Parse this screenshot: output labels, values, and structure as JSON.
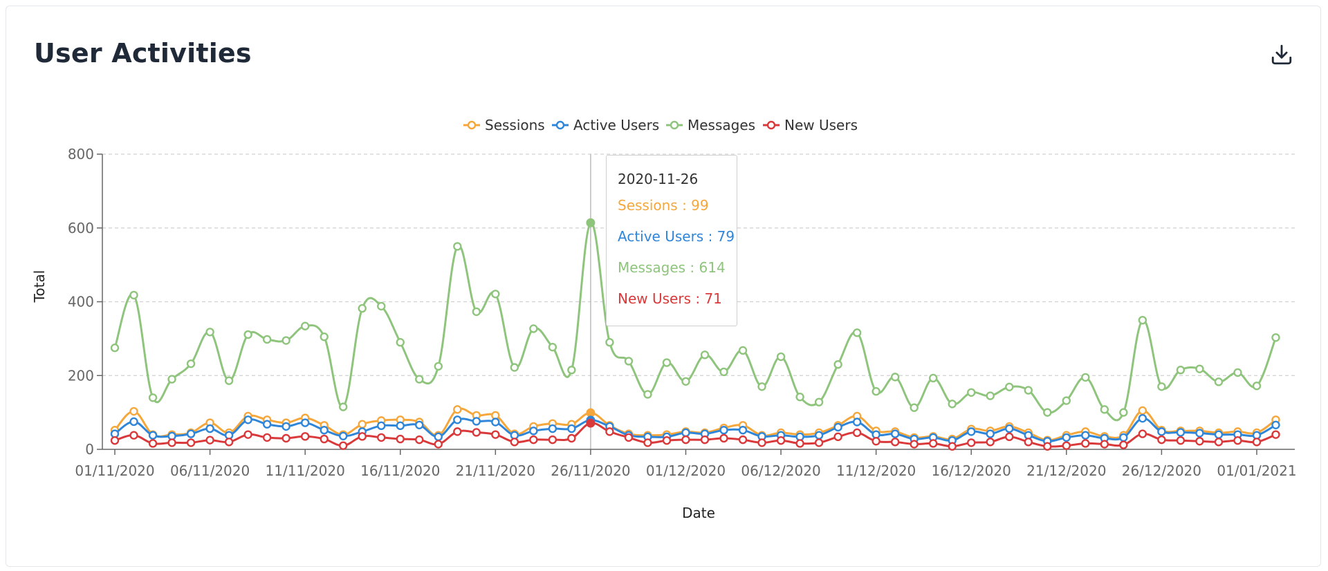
{
  "card": {
    "title": "User Activities",
    "download_icon": "download-icon"
  },
  "colors": {
    "sessions": "#f5a73b",
    "active_users": "#2f86d9",
    "messages": "#8ec47c",
    "new_users": "#d9393a",
    "grid": "#d0d0d0",
    "axis": "#666666"
  },
  "tooltip": {
    "date": "2020-11-26",
    "rows": [
      {
        "label": "Sessions : 99",
        "series": "Sessions"
      },
      {
        "label": "Active Users : 79",
        "series": "Active Users"
      },
      {
        "label": "Messages : 614",
        "series": "Messages"
      },
      {
        "label": "New Users : 71",
        "series": "New Users"
      }
    ]
  },
  "chart_data": {
    "type": "line",
    "title": "",
    "xlabel": "Date",
    "ylabel": "Total",
    "ylim": [
      0,
      800
    ],
    "yticks": [
      0,
      200,
      400,
      600,
      800
    ],
    "xtick_labels": [
      "01/11/2020",
      "06/11/2020",
      "11/11/2020",
      "16/11/2020",
      "21/11/2020",
      "26/11/2020",
      "01/12/2020",
      "06/12/2020",
      "11/12/2020",
      "16/12/2020",
      "21/12/2020",
      "26/12/2020",
      "01/01/2021"
    ],
    "x_start": "2020-11-01",
    "x_end": "2021-01-02",
    "grid": true,
    "legend_position": "top-center",
    "highlight_date": "2020-11-26",
    "series": [
      {
        "name": "Sessions",
        "color": "#f5a73b",
        "values": [
          52,
          103,
          40,
          40,
          45,
          72,
          45,
          90,
          80,
          72,
          85,
          65,
          40,
          68,
          78,
          80,
          74,
          38,
          108,
          92,
          92,
          42,
          62,
          70,
          68,
          99,
          65,
          42,
          38,
          40,
          48,
          45,
          58,
          65,
          38,
          45,
          40,
          45,
          65,
          90,
          50,
          48,
          32,
          35,
          28,
          55,
          50,
          62,
          45,
          25,
          38,
          48,
          35,
          38,
          105,
          52,
          50,
          50,
          45,
          48,
          45,
          80
        ]
      },
      {
        "name": "Active Users",
        "color": "#2f86d9",
        "values": [
          42,
          75,
          38,
          36,
          42,
          56,
          38,
          80,
          68,
          62,
          72,
          52,
          36,
          48,
          64,
          64,
          66,
          34,
          80,
          76,
          74,
          38,
          50,
          56,
          56,
          79,
          62,
          38,
          34,
          34,
          45,
          42,
          52,
          52,
          35,
          38,
          34,
          38,
          60,
          74,
          40,
          42,
          28,
          32,
          24,
          48,
          42,
          56,
          38,
          22,
          32,
          38,
          30,
          32,
          84,
          48,
          46,
          44,
          40,
          40,
          38,
          66
        ]
      },
      {
        "name": "Messages",
        "color": "#8ec47c",
        "values": [
          275,
          418,
          140,
          190,
          232,
          318,
          186,
          311,
          298,
          295,
          334,
          305,
          115,
          382,
          388,
          290,
          190,
          225,
          550,
          373,
          421,
          222,
          327,
          277,
          215,
          614,
          290,
          239,
          149,
          235,
          184,
          256,
          210,
          268,
          170,
          251,
          142,
          128,
          230,
          316,
          157,
          196,
          113,
          193,
          123,
          154,
          145,
          169,
          160,
          100,
          132,
          195,
          108,
          100,
          350,
          170,
          215,
          218,
          183,
          208,
          172,
          303
        ]
      },
      {
        "name": "New Users",
        "color": "#d9393a",
        "values": [
          24,
          38,
          16,
          18,
          18,
          25,
          20,
          40,
          32,
          30,
          35,
          28,
          10,
          35,
          32,
          28,
          26,
          14,
          48,
          46,
          40,
          20,
          26,
          26,
          30,
          71,
          48,
          32,
          18,
          24,
          26,
          26,
          30,
          26,
          18,
          24,
          16,
          18,
          34,
          45,
          22,
          20,
          14,
          16,
          8,
          18,
          20,
          34,
          20,
          8,
          10,
          16,
          14,
          12,
          42,
          26,
          24,
          22,
          20,
          24,
          20,
          40
        ]
      }
    ]
  }
}
